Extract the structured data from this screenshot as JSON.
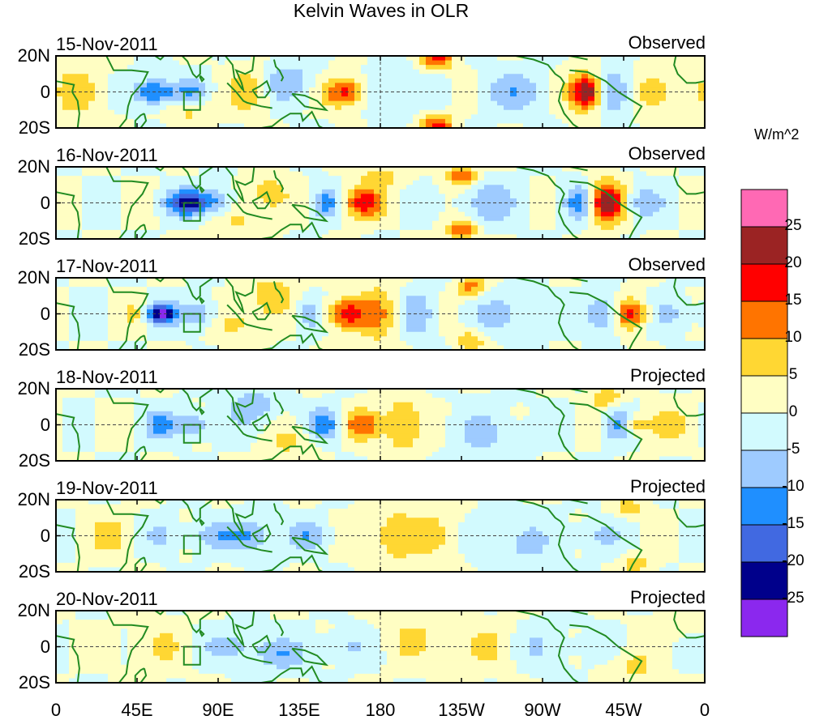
{
  "title": "Kelvin Waves in OLR",
  "units": "W/m^2",
  "colors": {
    "coast": "#228b22",
    "frame": "#000000",
    "equator": "#444444"
  },
  "chart_data": {
    "type": "heatmap",
    "title": "Kelvin Waves in OLR",
    "xlabel": "",
    "ylabel": "",
    "x_ticks": [
      "0",
      "45E",
      "90E",
      "135E",
      "180",
      "135W",
      "90W",
      "45W",
      "0"
    ],
    "y_ticks": [
      "20N",
      "0",
      "20S"
    ],
    "xlim": [
      0,
      360
    ],
    "ylim": [
      -20,
      20
    ],
    "panels": [
      {
        "date": "15-Nov-2011",
        "kind": "Observed"
      },
      {
        "date": "16-Nov-2011",
        "kind": "Observed"
      },
      {
        "date": "17-Nov-2011",
        "kind": "Observed"
      },
      {
        "date": "18-Nov-2011",
        "kind": "Projected"
      },
      {
        "date": "19-Nov-2011",
        "kind": "Projected"
      },
      {
        "date": "20-Nov-2011",
        "kind": "Projected"
      }
    ],
    "colorbar": {
      "levels": [
        "25",
        "20",
        "15",
        "10",
        "5",
        "0",
        "-5",
        "-10",
        "-15",
        "-20",
        "-25"
      ],
      "colors": [
        "#ff69b4",
        "#9b2323",
        "#ff0000",
        "#ff7400",
        "#ffd733",
        "#fffec3",
        "#d2fafe",
        "#9ecbff",
        "#1f8fff",
        "#4169e1",
        "#00008b",
        "#8b28ee"
      ]
    }
  }
}
